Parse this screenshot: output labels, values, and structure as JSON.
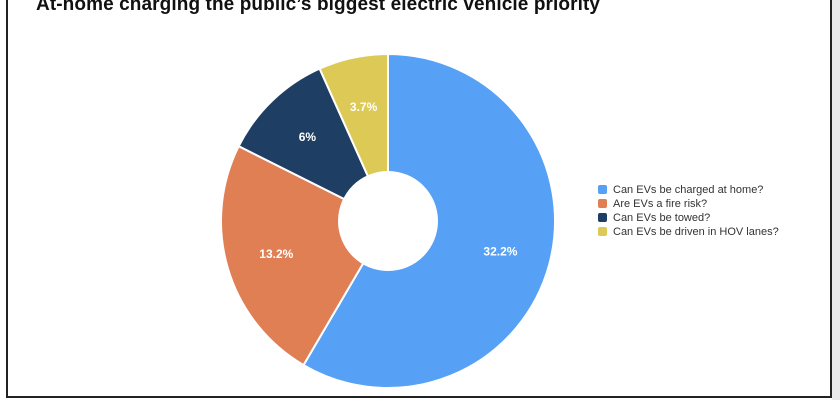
{
  "chart_data": {
    "type": "pie",
    "title": "At-home charging the public’s biggest electric vehicle priority",
    "donut": true,
    "slices": [
      {
        "label": "Can EVs be charged at home?",
        "value": 32.2,
        "display": "32.2%",
        "color": "#56a0f5"
      },
      {
        "label": "Are EVs a fire risk?",
        "value": 13.2,
        "display": "13.2%",
        "color": "#df7f53"
      },
      {
        "label": "Can EVs be towed?",
        "value": 6,
        "display": "6%",
        "color": "#1e3f63"
      },
      {
        "label": "Can EVs be driven in HOV lanes?",
        "value": 3.7,
        "display": "3.7%",
        "color": "#ddca56"
      }
    ],
    "legend_position": "right"
  }
}
